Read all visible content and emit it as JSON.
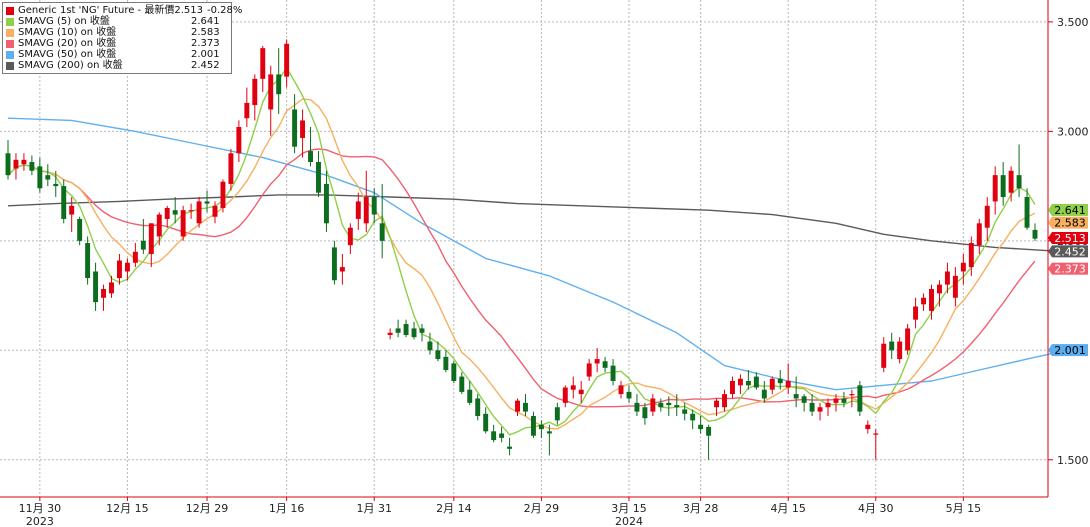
{
  "chart_data": {
    "type": "candlestick",
    "title": "",
    "xlabel": "",
    "ylabel": "",
    "ylim": [
      1.33,
      3.6
    ],
    "grid": true,
    "legend_position": "top-left",
    "y_ticks": [
      "1.500",
      "2.000",
      "2.500",
      "3.000",
      "3.500"
    ],
    "y_tick_values": [
      1.5,
      2.0,
      2.5,
      3.0,
      3.5
    ],
    "x_ticks": [
      {
        "label": "11月 30",
        "year": "2023",
        "index": 4
      },
      {
        "label": "12月 15",
        "year": "",
        "index": 15
      },
      {
        "label": "12月 29",
        "year": "",
        "index": 25
      },
      {
        "label": "1月 16",
        "year": "",
        "index": 35
      },
      {
        "label": "1月 31",
        "year": "",
        "index": 46
      },
      {
        "label": "2月 14",
        "year": "",
        "index": 56
      },
      {
        "label": "2月 29",
        "year": "",
        "index": 67
      },
      {
        "label": "3月 15",
        "year": "2024",
        "index": 78
      },
      {
        "label": "3月 28",
        "year": "",
        "index": 87
      },
      {
        "label": "4月 15",
        "year": "",
        "index": 98
      },
      {
        "label": "4月 30",
        "year": "",
        "index": 109
      },
      {
        "label": "5月 15",
        "year": "",
        "index": 120
      }
    ],
    "candles": [
      [
        2.9,
        2.96,
        2.78,
        2.8
      ],
      [
        2.83,
        2.9,
        2.78,
        2.87
      ],
      [
        2.85,
        2.9,
        2.82,
        2.87
      ],
      [
        2.86,
        2.89,
        2.8,
        2.82
      ],
      [
        2.84,
        2.88,
        2.72,
        2.74
      ],
      [
        2.8,
        2.85,
        2.75,
        2.78
      ],
      [
        2.76,
        2.82,
        2.7,
        2.75
      ],
      [
        2.75,
        2.78,
        2.58,
        2.6
      ],
      [
        2.62,
        2.7,
        2.54,
        2.66
      ],
      [
        2.6,
        2.61,
        2.48,
        2.5
      ],
      [
        2.49,
        2.52,
        2.3,
        2.33
      ],
      [
        2.36,
        2.4,
        2.18,
        2.22
      ],
      [
        2.24,
        2.3,
        2.18,
        2.28
      ],
      [
        2.26,
        2.34,
        2.24,
        2.31
      ],
      [
        2.33,
        2.44,
        2.3,
        2.41
      ],
      [
        2.36,
        2.42,
        2.32,
        2.4
      ],
      [
        2.4,
        2.49,
        2.38,
        2.45
      ],
      [
        2.5,
        2.6,
        2.44,
        2.46
      ],
      [
        2.44,
        2.58,
        2.38,
        2.58
      ],
      [
        2.52,
        2.63,
        2.48,
        2.62
      ],
      [
        2.6,
        2.66,
        2.56,
        2.65
      ],
      [
        2.64,
        2.7,
        2.58,
        2.62
      ],
      [
        2.52,
        2.66,
        2.5,
        2.64
      ],
      [
        2.64,
        2.67,
        2.6,
        2.64
      ],
      [
        2.58,
        2.7,
        2.56,
        2.68
      ],
      [
        2.68,
        2.73,
        2.63,
        2.67
      ],
      [
        2.61,
        2.68,
        2.58,
        2.66
      ],
      [
        2.65,
        2.78,
        2.63,
        2.77
      ],
      [
        2.76,
        2.92,
        2.73,
        2.9
      ],
      [
        2.9,
        3.05,
        2.86,
        3.02
      ],
      [
        3.06,
        3.2,
        3.02,
        3.13
      ],
      [
        3.12,
        3.26,
        3.05,
        3.24
      ],
      [
        3.24,
        3.39,
        3.18,
        3.38
      ],
      [
        3.1,
        3.3,
        2.98,
        3.26
      ],
      [
        3.26,
        3.38,
        3.08,
        3.17
      ],
      [
        3.25,
        3.42,
        3.2,
        3.4
      ],
      [
        3.1,
        3.17,
        2.9,
        2.93
      ],
      [
        2.97,
        3.1,
        2.88,
        3.05
      ],
      [
        2.91,
        3.02,
        2.84,
        2.86
      ],
      [
        2.86,
        2.91,
        2.7,
        2.72
      ],
      [
        2.76,
        2.82,
        2.54,
        2.58
      ],
      [
        2.47,
        2.5,
        2.3,
        2.32
      ],
      [
        2.36,
        2.44,
        2.3,
        2.38
      ],
      [
        2.48,
        2.58,
        2.44,
        2.56
      ],
      [
        2.6,
        2.72,
        2.55,
        2.68
      ],
      [
        2.58,
        2.82,
        2.54,
        2.7
      ],
      [
        2.7,
        2.74,
        2.58,
        2.62
      ],
      [
        2.58,
        2.76,
        2.42,
        2.5
      ],
      [
        2.07,
        2.1,
        2.05,
        2.08
      ],
      [
        2.1,
        2.14,
        2.06,
        2.08
      ],
      [
        2.12,
        2.14,
        2.06,
        2.07
      ],
      [
        2.1,
        2.13,
        2.05,
        2.06
      ],
      [
        2.1,
        2.12,
        2.04,
        2.08
      ],
      [
        2.04,
        2.08,
        1.98,
        2.0
      ],
      [
        2.0,
        2.04,
        1.95,
        1.96
      ],
      [
        1.97,
        2.0,
        1.9,
        1.91
      ],
      [
        1.94,
        1.95,
        1.85,
        1.86
      ],
      [
        1.88,
        1.9,
        1.8,
        1.81
      ],
      [
        1.82,
        1.86,
        1.75,
        1.76
      ],
      [
        1.78,
        1.8,
        1.68,
        1.7
      ],
      [
        1.71,
        1.74,
        1.62,
        1.63
      ],
      [
        1.63,
        1.66,
        1.58,
        1.59
      ],
      [
        1.62,
        1.65,
        1.58,
        1.6
      ],
      [
        1.56,
        1.6,
        1.52,
        1.55
      ],
      [
        1.72,
        1.78,
        1.7,
        1.77
      ],
      [
        1.76,
        1.8,
        1.7,
        1.72
      ],
      [
        1.7,
        1.72,
        1.6,
        1.61
      ],
      [
        1.66,
        1.68,
        1.6,
        1.64
      ],
      [
        1.63,
        1.66,
        1.52,
        1.62
      ],
      [
        1.74,
        1.76,
        1.66,
        1.68
      ],
      [
        1.76,
        1.84,
        1.74,
        1.83
      ],
      [
        1.82,
        1.88,
        1.78,
        1.84
      ],
      [
        1.8,
        1.86,
        1.76,
        1.82
      ],
      [
        1.88,
        1.96,
        1.86,
        1.94
      ],
      [
        1.94,
        2.01,
        1.9,
        1.96
      ],
      [
        1.95,
        1.97,
        1.9,
        1.92
      ],
      [
        1.93,
        1.96,
        1.84,
        1.86
      ],
      [
        1.8,
        1.86,
        1.78,
        1.84
      ],
      [
        1.81,
        1.84,
        1.76,
        1.78
      ],
      [
        1.76,
        1.8,
        1.7,
        1.72
      ],
      [
        1.74,
        1.76,
        1.66,
        1.69
      ],
      [
        1.72,
        1.8,
        1.7,
        1.78
      ],
      [
        1.76,
        1.78,
        1.72,
        1.74
      ],
      [
        1.76,
        1.79,
        1.7,
        1.75
      ],
      [
        1.75,
        1.8,
        1.7,
        1.74
      ],
      [
        1.73,
        1.76,
        1.68,
        1.71
      ],
      [
        1.71,
        1.73,
        1.64,
        1.68
      ],
      [
        1.66,
        1.7,
        1.62,
        1.64
      ],
      [
        1.65,
        1.66,
        1.5,
        1.61
      ],
      [
        1.74,
        1.78,
        1.7,
        1.77
      ],
      [
        1.74,
        1.82,
        1.72,
        1.8
      ],
      [
        1.8,
        1.88,
        1.78,
        1.86
      ],
      [
        1.84,
        1.89,
        1.8,
        1.87
      ],
      [
        1.86,
        1.91,
        1.82,
        1.84
      ],
      [
        1.88,
        1.9,
        1.82,
        1.83
      ],
      [
        1.82,
        1.86,
        1.76,
        1.78
      ],
      [
        1.82,
        1.88,
        1.8,
        1.87
      ],
      [
        1.87,
        1.91,
        1.82,
        1.85
      ],
      [
        1.83,
        1.94,
        1.8,
        1.86
      ],
      [
        1.8,
        1.88,
        1.74,
        1.78
      ],
      [
        1.79,
        1.8,
        1.72,
        1.76
      ],
      [
        1.76,
        1.8,
        1.7,
        1.72
      ],
      [
        1.72,
        1.76,
        1.68,
        1.74
      ],
      [
        1.74,
        1.78,
        1.7,
        1.76
      ],
      [
        1.76,
        1.8,
        1.72,
        1.78
      ],
      [
        1.78,
        1.81,
        1.74,
        1.76
      ],
      [
        1.8,
        1.82,
        1.74,
        1.8
      ],
      [
        1.84,
        1.86,
        1.7,
        1.72
      ],
      [
        1.64,
        1.68,
        1.62,
        1.66
      ],
      [
        1.62,
        1.64,
        1.5,
        1.62
      ],
      [
        1.92,
        2.06,
        1.9,
        2.03
      ],
      [
        2.04,
        2.08,
        1.96,
        2.0
      ],
      [
        1.96,
        2.06,
        1.94,
        2.04
      ],
      [
        2.0,
        2.12,
        1.98,
        2.1
      ],
      [
        2.14,
        2.24,
        2.1,
        2.2
      ],
      [
        2.21,
        2.26,
        2.18,
        2.24
      ],
      [
        2.18,
        2.3,
        2.14,
        2.28
      ],
      [
        2.26,
        2.32,
        2.2,
        2.3
      ],
      [
        2.3,
        2.4,
        2.26,
        2.36
      ],
      [
        2.24,
        2.38,
        2.2,
        2.34
      ],
      [
        2.36,
        2.44,
        2.3,
        2.4
      ],
      [
        2.38,
        2.52,
        2.34,
        2.49
      ],
      [
        2.48,
        2.6,
        2.44,
        2.58
      ],
      [
        2.56,
        2.7,
        2.5,
        2.66
      ],
      [
        2.68,
        2.84,
        2.62,
        2.8
      ],
      [
        2.8,
        2.86,
        2.66,
        2.7
      ],
      [
        2.72,
        2.84,
        2.68,
        2.82
      ],
      [
        2.8,
        2.94,
        2.7,
        2.74
      ],
      [
        2.7,
        2.74,
        2.55,
        2.56
      ],
      [
        2.55,
        2.58,
        2.5,
        2.51
      ]
    ],
    "series": [
      {
        "name": "Generic 1st 'NG' Future - 最新價",
        "value": "2.513",
        "change": "-0.28%",
        "color": "#e0000f",
        "up_color": "#e0000f",
        "down_color": "#0d6d1f"
      },
      {
        "name": "SMAVG (5)  on 收盤",
        "value": "2.641",
        "color": "#8fd04a",
        "line_color": "#8fd04a"
      },
      {
        "name": "SMAVG (10)  on 收盤",
        "value": "2.583",
        "color": "#f7b060",
        "line_color": "#f7b060"
      },
      {
        "name": "SMAVG (20)  on 收盤",
        "value": "2.373",
        "color": "#f06070",
        "line_color": "#f06070"
      },
      {
        "name": "SMAVG (50)  on 收盤",
        "value": "2.001",
        "color": "#60b0f0",
        "line_color": "#60b0f0"
      },
      {
        "name": "SMAVG (200)  on 收盤",
        "value": "2.452",
        "color": "#5a5a5a",
        "line_color": "#5a5a5a"
      }
    ],
    "right_labels": [
      {
        "value": 2.641,
        "text": "2.641",
        "bg": "#8fd04a",
        "fg": "#000000"
      },
      {
        "value": 2.583,
        "text": "2.583",
        "bg": "#f7b060",
        "fg": "#000000"
      },
      {
        "value": 2.513,
        "text": "2.513",
        "bg": "#e0000f",
        "fg": "#ffffff"
      },
      {
        "value": 2.452,
        "text": "2.452",
        "bg": "#5a5a5a",
        "fg": "#ffffff"
      },
      {
        "value": 2.373,
        "text": "2.373",
        "bg": "#f06070",
        "fg": "#ffffff"
      },
      {
        "value": 2.001,
        "text": "2.001",
        "bg": "#5aaef0",
        "fg": "#000000"
      }
    ],
    "ma50": [
      [
        0,
        3.06
      ],
      [
        8,
        3.05
      ],
      [
        16,
        3.0
      ],
      [
        24,
        2.94
      ],
      [
        32,
        2.88
      ],
      [
        40,
        2.8
      ],
      [
        46,
        2.72
      ],
      [
        52,
        2.58
      ],
      [
        60,
        2.42
      ],
      [
        68,
        2.34
      ],
      [
        76,
        2.22
      ],
      [
        84,
        2.08
      ],
      [
        90,
        1.93
      ],
      [
        98,
        1.86
      ],
      [
        104,
        1.82
      ],
      [
        110,
        1.84
      ],
      [
        116,
        1.86
      ],
      [
        122,
        1.91
      ],
      [
        128,
        1.96
      ],
      [
        133,
        2.0
      ]
    ],
    "ma200": [
      [
        0,
        2.66
      ],
      [
        6,
        2.67
      ],
      [
        14,
        2.68
      ],
      [
        20,
        2.69
      ],
      [
        28,
        2.7
      ],
      [
        34,
        2.71
      ],
      [
        40,
        2.71
      ],
      [
        48,
        2.7
      ],
      [
        56,
        2.69
      ],
      [
        64,
        2.67
      ],
      [
        72,
        2.66
      ],
      [
        80,
        2.65
      ],
      [
        88,
        2.64
      ],
      [
        96,
        2.62
      ],
      [
        104,
        2.58
      ],
      [
        110,
        2.53
      ],
      [
        116,
        2.5
      ],
      [
        124,
        2.47
      ],
      [
        133,
        2.45
      ]
    ]
  },
  "colors": {
    "grid": "#b8b8b8",
    "axis": "#e0000f",
    "tick_text": "#222222"
  }
}
